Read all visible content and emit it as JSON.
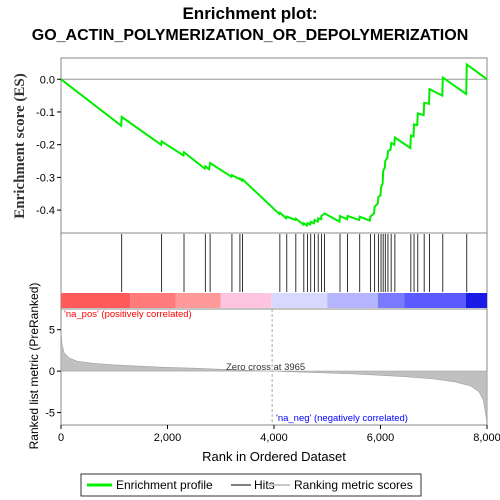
{
  "title_line1": "Enrichment plot:",
  "title_line2": "GO_ACTIN_POLYMERIZATION_OR_DEPOLYMERIZATION",
  "colors": {
    "enrichment_line": "#00ee00",
    "hits": "#000000",
    "ranking_fill": "#c0c0c0",
    "pos_label": "#ff0000",
    "neg_label": "#0000ff"
  },
  "chart_data": {
    "type": "line",
    "x_range": [
      0,
      8000
    ],
    "x_ticks": [
      "0",
      "2,000",
      "4,000",
      "6,000",
      "8,000"
    ],
    "x_tick_values": [
      0,
      2000,
      4000,
      6000,
      8000
    ],
    "xlabel": "Rank in Ordered Dataset",
    "es_panel": {
      "ylabel": "Enrichment score (ES)",
      "ylim": [
        -0.47,
        0.065
      ],
      "y_ticks": [
        "0.0",
        "-0.1",
        "-0.2",
        "-0.3",
        "-0.4"
      ],
      "y_tick_values": [
        0.0,
        -0.1,
        -0.2,
        -0.3,
        -0.4
      ],
      "enrichment_profile": [
        [
          0,
          0.0
        ],
        [
          1130,
          -0.142
        ],
        [
          1140,
          -0.115
        ],
        [
          1880,
          -0.2
        ],
        [
          1890,
          -0.19
        ],
        [
          2300,
          -0.233
        ],
        [
          2310,
          -0.223
        ],
        [
          2700,
          -0.273
        ],
        [
          2710,
          -0.266
        ],
        [
          2780,
          -0.275
        ],
        [
          2800,
          -0.256
        ],
        [
          3200,
          -0.298
        ],
        [
          3210,
          -0.293
        ],
        [
          3350,
          -0.305
        ],
        [
          3360,
          -0.303
        ],
        [
          3400,
          -0.31
        ],
        [
          3410,
          -0.306
        ],
        [
          4100,
          -0.412
        ],
        [
          4110,
          -0.408
        ],
        [
          4230,
          -0.425
        ],
        [
          4240,
          -0.42
        ],
        [
          4400,
          -0.43
        ],
        [
          4410,
          -0.426
        ],
        [
          4550,
          -0.444
        ],
        [
          4560,
          -0.44
        ],
        [
          4620,
          -0.447
        ],
        [
          4630,
          -0.44
        ],
        [
          4680,
          -0.444
        ],
        [
          4690,
          -0.436
        ],
        [
          4750,
          -0.44
        ],
        [
          4760,
          -0.43
        ],
        [
          4820,
          -0.435
        ],
        [
          4830,
          -0.425
        ],
        [
          4880,
          -0.428
        ],
        [
          4890,
          -0.418
        ],
        [
          4950,
          -0.41
        ],
        [
          5230,
          -0.435
        ],
        [
          5240,
          -0.418
        ],
        [
          5370,
          -0.428
        ],
        [
          5380,
          -0.418
        ],
        [
          5600,
          -0.43
        ],
        [
          5610,
          -0.42
        ],
        [
          5800,
          -0.432
        ],
        [
          5810,
          -0.42
        ],
        [
          5880,
          -0.41
        ],
        [
          5890,
          -0.39
        ],
        [
          5950,
          -0.38
        ],
        [
          5960,
          -0.36
        ],
        [
          6000,
          -0.355
        ],
        [
          6010,
          -0.33
        ],
        [
          6040,
          -0.32
        ],
        [
          6050,
          -0.28
        ],
        [
          6080,
          -0.27
        ],
        [
          6090,
          -0.25
        ],
        [
          6130,
          -0.24
        ],
        [
          6140,
          -0.22
        ],
        [
          6190,
          -0.215
        ],
        [
          6200,
          -0.195
        ],
        [
          6260,
          -0.2
        ],
        [
          6270,
          -0.178
        ],
        [
          6560,
          -0.21
        ],
        [
          6570,
          -0.172
        ],
        [
          6620,
          -0.175
        ],
        [
          6630,
          -0.138
        ],
        [
          6690,
          -0.14
        ],
        [
          6700,
          -0.104
        ],
        [
          6810,
          -0.11
        ],
        [
          6820,
          -0.072
        ],
        [
          6910,
          -0.075
        ],
        [
          6920,
          -0.03
        ],
        [
          7160,
          -0.05
        ],
        [
          7170,
          0.005
        ],
        [
          7610,
          -0.045
        ],
        [
          7620,
          0.045
        ],
        [
          8000,
          0.0
        ]
      ]
    },
    "hit_ranks": [
      1140,
      1890,
      2310,
      2710,
      2800,
      3210,
      3360,
      3410,
      4110,
      4240,
      4410,
      4560,
      4630,
      4690,
      4760,
      4830,
      4890,
      4950,
      5240,
      5380,
      5610,
      5810,
      5890,
      5960,
      6010,
      6050,
      6090,
      6140,
      6200,
      6270,
      6570,
      6630,
      6700,
      6820,
      6920,
      7170,
      7620
    ],
    "color_bar_segments": [
      {
        "start": 0,
        "end": 1300,
        "color": "#ff5a5a"
      },
      {
        "start": 1300,
        "end": 2150,
        "color": "#ff7a7a"
      },
      {
        "start": 2150,
        "end": 3000,
        "color": "#ff9a9a"
      },
      {
        "start": 3000,
        "end": 3950,
        "color": "#ffc4e0"
      },
      {
        "start": 3950,
        "end": 5000,
        "color": "#d8d8ff"
      },
      {
        "start": 5000,
        "end": 5950,
        "color": "#b4b4ff"
      },
      {
        "start": 5950,
        "end": 6450,
        "color": "#7a7aff"
      },
      {
        "start": 6450,
        "end": 7600,
        "color": "#5a5aff"
      },
      {
        "start": 7600,
        "end": 8000,
        "color": "#1a1ae6"
      }
    ],
    "ranked_panel": {
      "ylabel": "Ranked list metric (PreRanked)",
      "ylim": [
        -6.5,
        7.5
      ],
      "y_ticks": [
        "5",
        "0",
        "-5"
      ],
      "y_tick_values": [
        5,
        0,
        -5
      ],
      "metric_curve": [
        [
          0,
          4.8
        ],
        [
          20,
          3.2
        ],
        [
          60,
          2.2
        ],
        [
          150,
          1.6
        ],
        [
          300,
          1.2
        ],
        [
          600,
          0.95
        ],
        [
          1000,
          0.75
        ],
        [
          1500,
          0.6
        ],
        [
          2000,
          0.45
        ],
        [
          2500,
          0.35
        ],
        [
          3000,
          0.22
        ],
        [
          3500,
          0.1
        ],
        [
          3965,
          0.0
        ],
        [
          4500,
          -0.12
        ],
        [
          5000,
          -0.22
        ],
        [
          5500,
          -0.35
        ],
        [
          6000,
          -0.5
        ],
        [
          6500,
          -0.68
        ],
        [
          7000,
          -0.95
        ],
        [
          7400,
          -1.3
        ],
        [
          7700,
          -1.8
        ],
        [
          7850,
          -2.5
        ],
        [
          7930,
          -3.5
        ],
        [
          7970,
          -5.0
        ],
        [
          8000,
          -6.3
        ]
      ],
      "zero_cross_label": "Zero cross at 3965",
      "zero_cross_rank": 3965,
      "pos_label": "'na_pos' (positively correlated)",
      "neg_label": "'na_neg' (negatively correlated)"
    },
    "legend": [
      {
        "label": "Enrichment profile",
        "color": "#00ee00"
      },
      {
        "label": "Hits",
        "color": "#808080"
      },
      {
        "label": "Ranking metric scores",
        "color": "#c8c8c8"
      }
    ]
  }
}
